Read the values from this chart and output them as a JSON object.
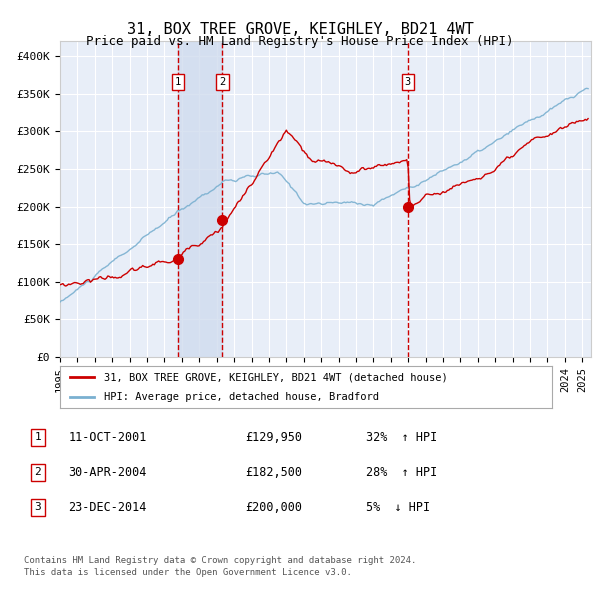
{
  "title": "31, BOX TREE GROVE, KEIGHLEY, BD21 4WT",
  "subtitle": "Price paid vs. HM Land Registry's House Price Index (HPI)",
  "title_fontsize": 11,
  "subtitle_fontsize": 9,
  "xlim_start": 1995.0,
  "xlim_end": 2025.5,
  "ylim_min": 0,
  "ylim_max": 420000,
  "yticks": [
    0,
    50000,
    100000,
    150000,
    200000,
    250000,
    300000,
    350000,
    400000
  ],
  "ytick_labels": [
    "£0",
    "£50K",
    "£100K",
    "£150K",
    "£200K",
    "£250K",
    "£300K",
    "£350K",
    "£400K"
  ],
  "xticks": [
    1995,
    1996,
    1997,
    1998,
    1999,
    2000,
    2001,
    2002,
    2003,
    2004,
    2005,
    2006,
    2007,
    2008,
    2009,
    2010,
    2011,
    2012,
    2013,
    2014,
    2015,
    2016,
    2017,
    2018,
    2019,
    2020,
    2021,
    2022,
    2023,
    2024,
    2025
  ],
  "background_color": "#ffffff",
  "plot_bg_color": "#e8eef8",
  "grid_color": "#ffffff",
  "sale_color": "#cc0000",
  "hpi_line_color": "#7ab0d0",
  "marker_color": "#cc0000",
  "vline_color": "#cc0000",
  "shade_color": "#d0dcee",
  "legend_sale_label": "31, BOX TREE GROVE, KEIGHLEY, BD21 4WT (detached house)",
  "legend_hpi_label": "HPI: Average price, detached house, Bradford",
  "sales": [
    {
      "label": "1",
      "date_str": "11-OCT-2001",
      "year": 2001.78,
      "price": 129950,
      "pct": "32%",
      "dir": "↑"
    },
    {
      "label": "2",
      "date_str": "30-APR-2004",
      "year": 2004.33,
      "price": 182500,
      "pct": "28%",
      "dir": "↑"
    },
    {
      "label": "3",
      "date_str": "23-DEC-2014",
      "year": 2014.98,
      "price": 200000,
      "pct": "5%",
      "dir": "↓"
    }
  ],
  "footnote1": "Contains HM Land Registry data © Crown copyright and database right 2024.",
  "footnote2": "This data is licensed under the Open Government Licence v3.0.",
  "box_border_color": "#cc0000"
}
